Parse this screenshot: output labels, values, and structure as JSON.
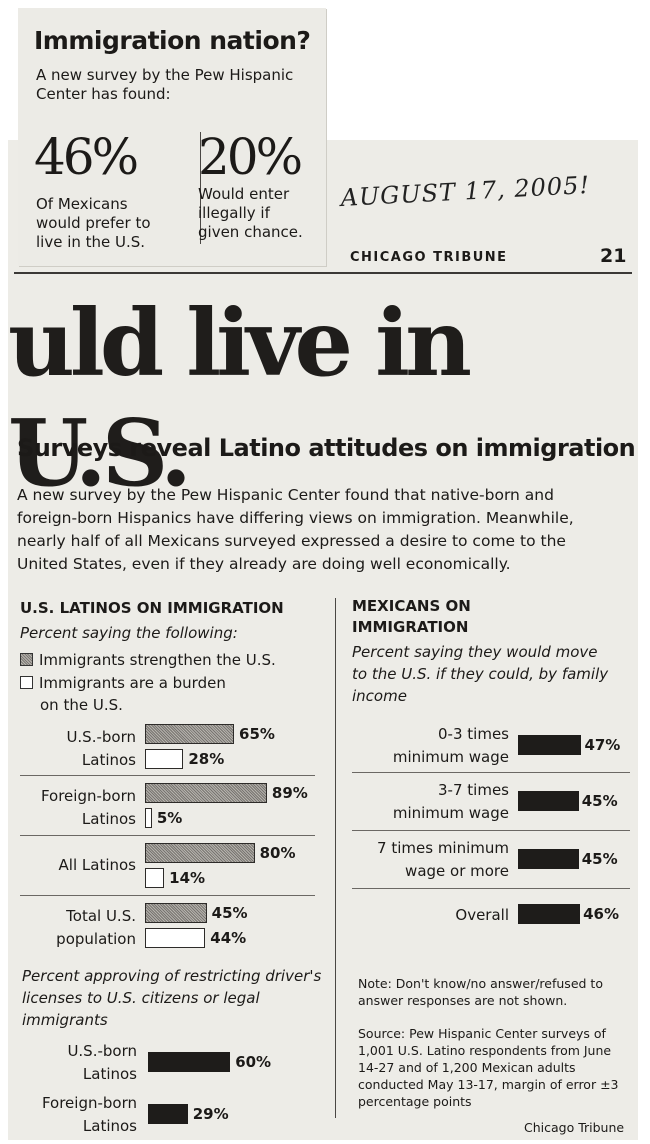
{
  "clipping_top": {
    "title": "Immigration nation?",
    "subtitle": "A new survey by the Pew Hispanic Center has found:",
    "stat1": {
      "value": "46%",
      "caption": [
        "Of Mexicans",
        "would prefer to",
        "live in the U.S."
      ]
    },
    "stat2": {
      "value": "20%",
      "caption": [
        "Would enter",
        "illegally if",
        "given chance."
      ]
    }
  },
  "handwritten_date": "AUGUST 17, 2005!",
  "page_header": {
    "paper": "CHICAGO TRIBUNE",
    "page_number": "21"
  },
  "headline": "uld live in U.S.",
  "deck": "Surveys reveal Latino attitudes on immigration",
  "intro": "A new survey by the Pew Hispanic Center found that native-born and foreign-born Hispanics have differing views on immigration. Meanwhile, nearly half of all Mexicans surveyed expressed a desire to come to the United States, even if they already are doing well economically.",
  "chart_data": [
    {
      "type": "bar",
      "title": "U.S. LATINOS ON IMMIGRATION",
      "subtitle": "Percent saying the following:",
      "categories": [
        [
          "U.S.-born",
          "Latinos"
        ],
        [
          "Foreign-born",
          "Latinos"
        ],
        [
          "All Latinos"
        ],
        [
          "Total U.S.",
          "population"
        ]
      ],
      "series": [
        {
          "name": "Immigrants strengthen the U.S.",
          "values": [
            65,
            89,
            80,
            45
          ],
          "labels": [
            "65%",
            "89%",
            "80%",
            "45%"
          ],
          "style": "shade"
        },
        {
          "name": "Immigrants are a burden on the U.S.",
          "values": [
            28,
            5,
            14,
            44
          ],
          "labels": [
            "28%",
            "5%",
            "14%",
            "44%"
          ],
          "style": "empty"
        }
      ],
      "xlim": [
        0,
        100
      ]
    },
    {
      "type": "bar",
      "title": "",
      "subtitle": "Percent approving of restricting driver's licenses to U.S. citizens or legal immigrants",
      "categories": [
        [
          "U.S.-born",
          "Latinos"
        ],
        [
          "Foreign-born",
          "Latinos"
        ]
      ],
      "values": [
        60,
        29
      ],
      "labels": [
        "60%",
        "29%"
      ],
      "xlim": [
        0,
        100
      ]
    },
    {
      "type": "bar",
      "title": "MEXICANS ON IMMIGRATION",
      "subtitle": "Percent saying they would move to the U.S. if they could, by family income",
      "categories": [
        [
          "0-3 times",
          "minimum wage"
        ],
        [
          "3-7 times",
          "minimum wage"
        ],
        [
          "7 times minimum",
          "wage or more"
        ],
        [
          "Overall"
        ]
      ],
      "values": [
        47,
        45,
        45,
        46
      ],
      "labels": [
        "47%",
        "45%",
        "45%",
        "46%"
      ],
      "xlim": [
        0,
        100
      ]
    }
  ],
  "legend": {
    "item1": "Immigrants strengthen the U.S.",
    "item2_line1": "Immigrants are a burden",
    "item2_line2": "on the U.S."
  },
  "note": "Note: Don't know/no answer/refused to answer responses are not shown.",
  "source": "Source: Pew Hispanic Center surveys of 1,001 U.S. Latino respondents from June 14-27 and of 1,200 Mexican adults conducted May 13-17, margin of error ±3 percentage points",
  "credit": "Chicago Tribune",
  "colors": {
    "paper": "#edece7",
    "ink": "#1c1a18",
    "dark_bar": "#1e1c1a"
  }
}
